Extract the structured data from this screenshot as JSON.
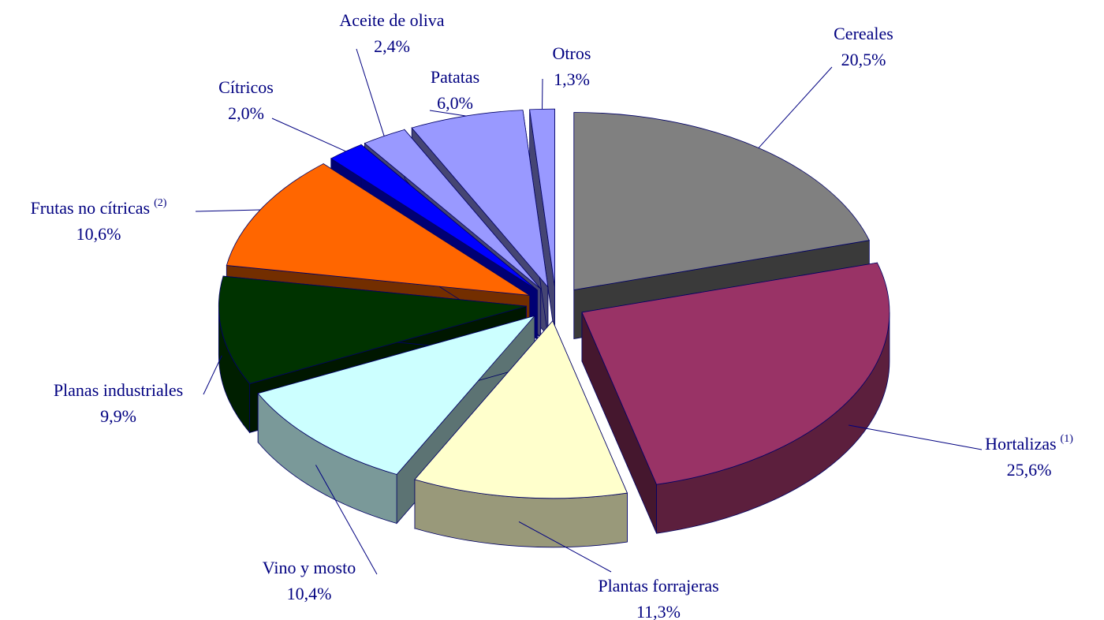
{
  "chart_data": {
    "type": "pie3d",
    "categories": [
      "Cereales",
      "Hortalizas",
      "Plantas forrajeras",
      "Vino y mosto",
      "Planas industriales",
      "Frutas no cítricas",
      "Cítricos",
      "Aceite de oliva",
      "Patatas",
      "Otros"
    ],
    "category_notes": [
      null,
      "(1)",
      null,
      null,
      null,
      "(2)",
      null,
      null,
      null,
      null
    ],
    "values": [
      20.5,
      25.6,
      11.3,
      10.4,
      9.9,
      10.6,
      2.0,
      2.4,
      6.0,
      1.3
    ],
    "value_labels": [
      "20,5%",
      "25,6%",
      "11,3%",
      "10,4%",
      "9,9%",
      "10,6%",
      "2,0%",
      "2,4%",
      "6,0%",
      "1,3%"
    ],
    "colors": [
      "#808080",
      "#993366",
      "#ffffcc",
      "#ccffff",
      "#003300",
      "#ff6600",
      "#0000ff",
      "#9999ff",
      "#9999ff",
      "#9999ff"
    ]
  }
}
